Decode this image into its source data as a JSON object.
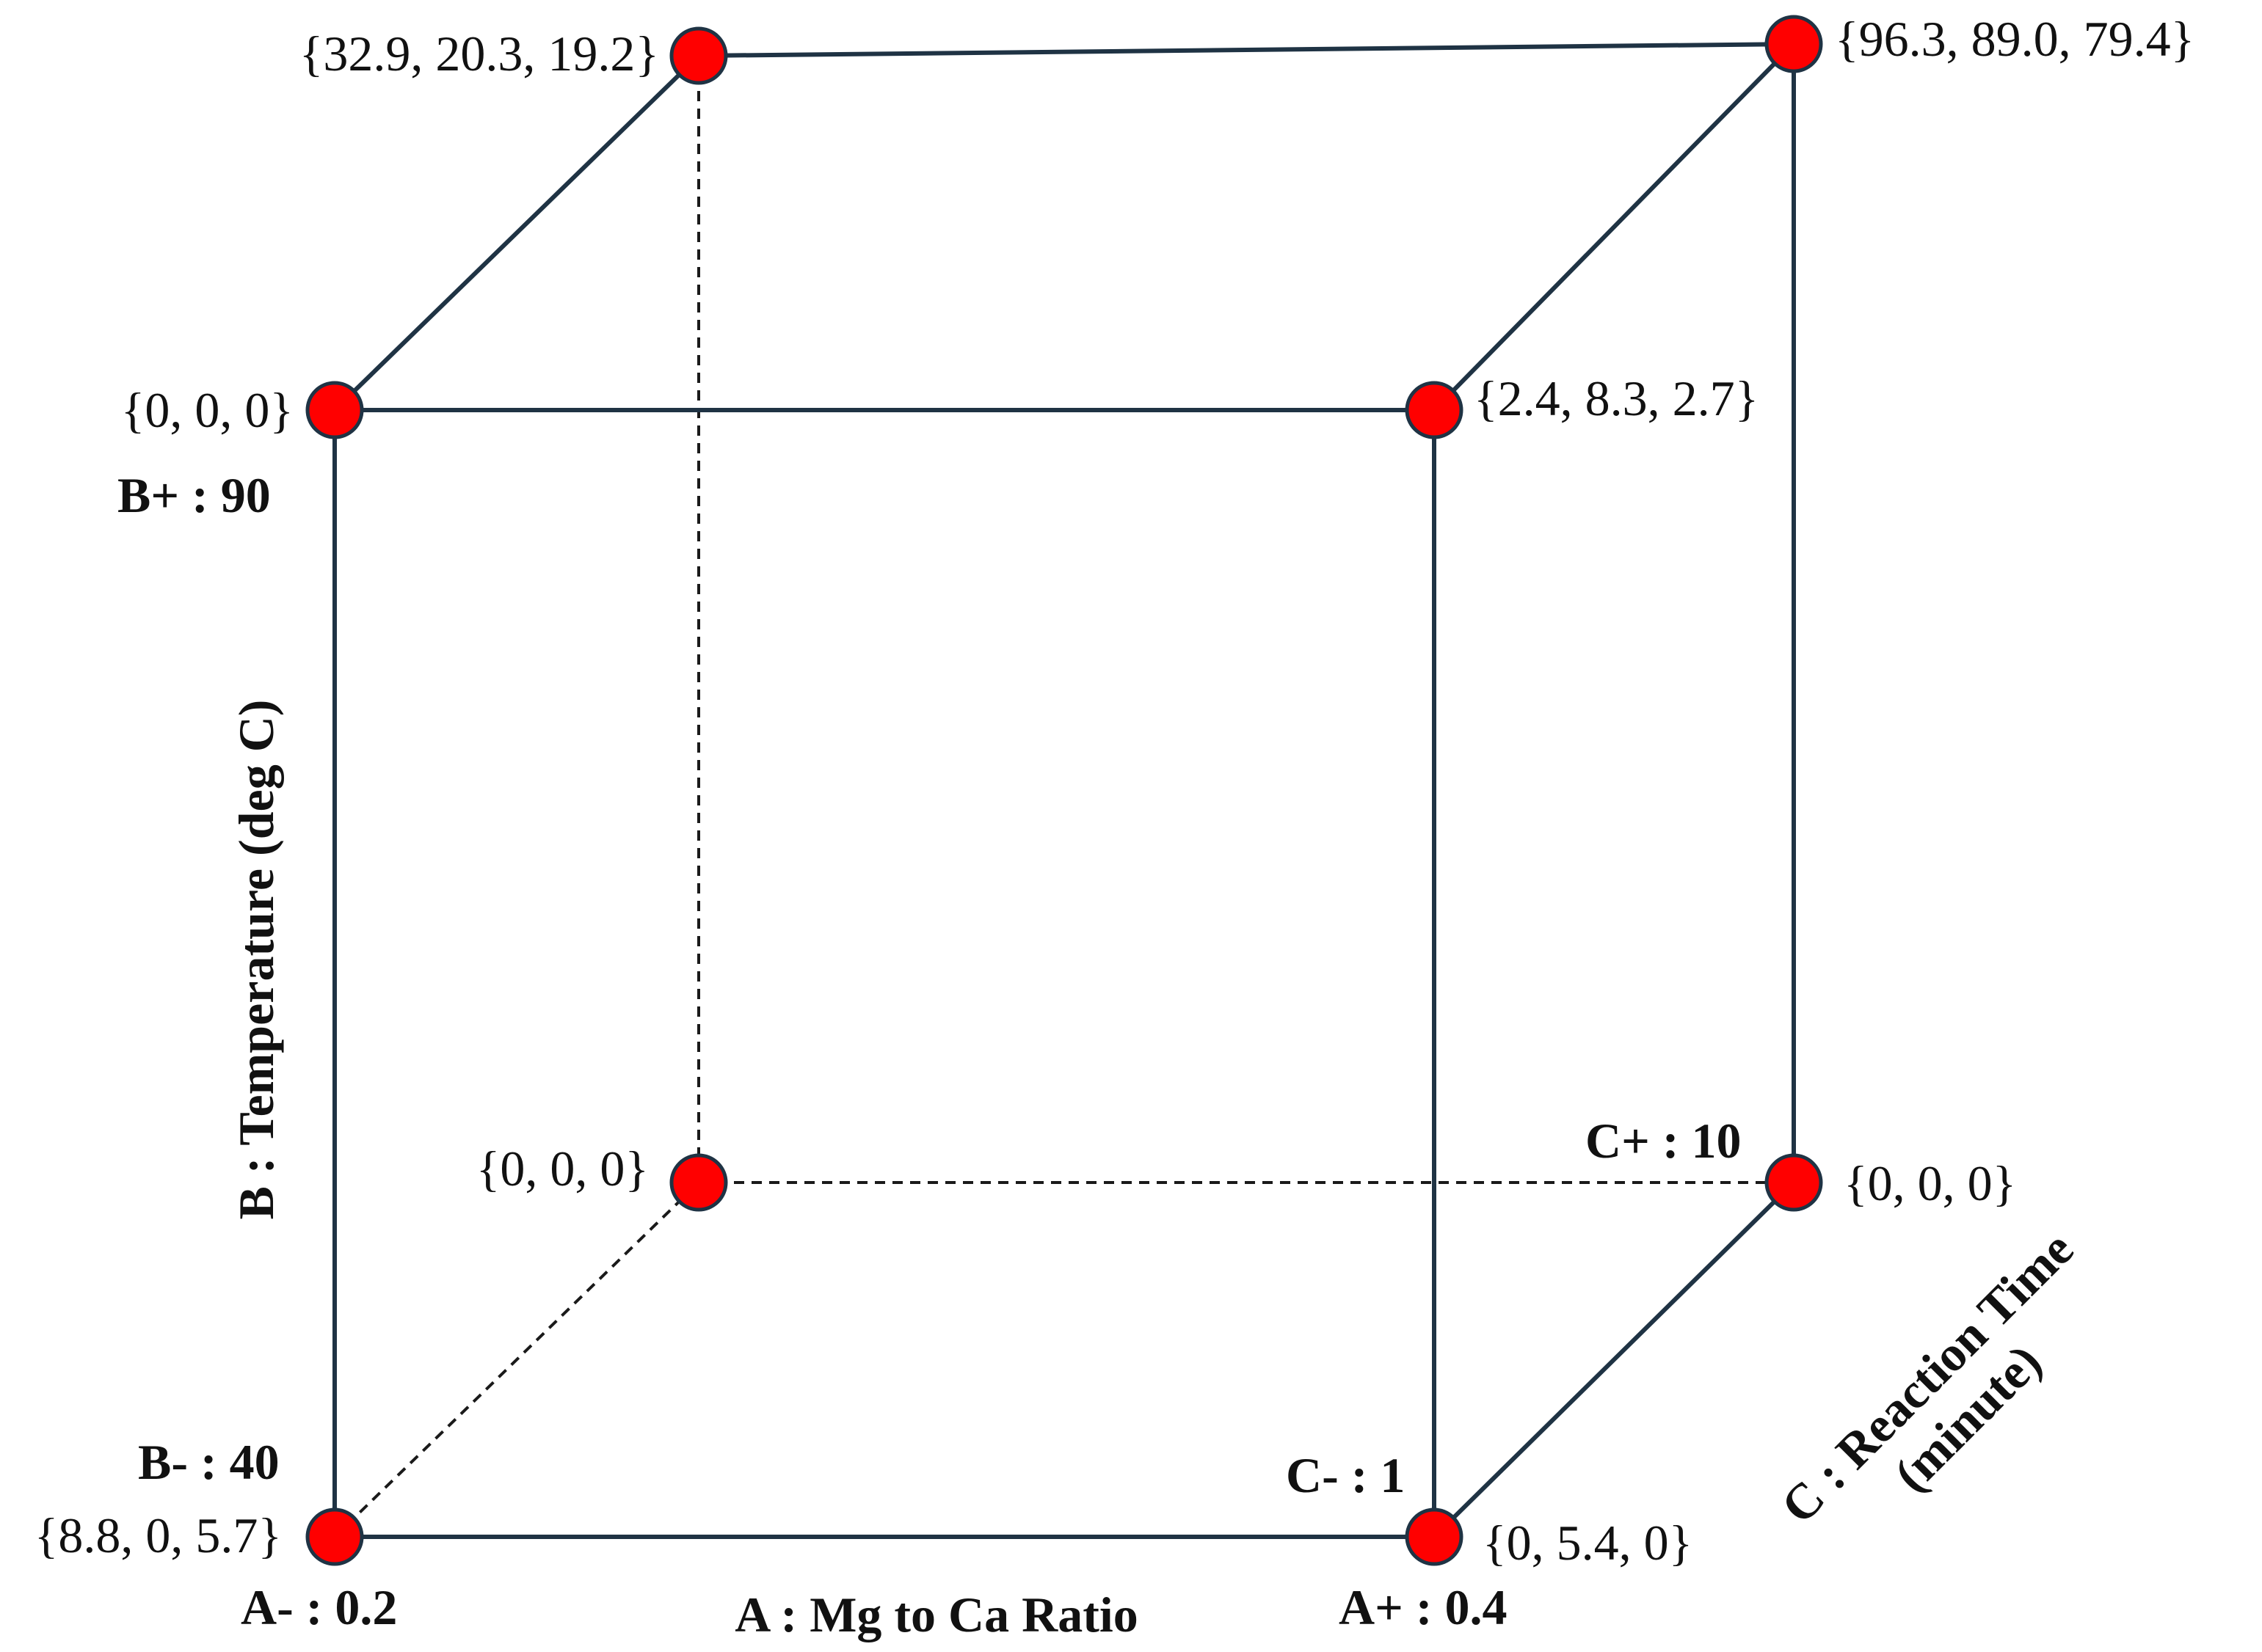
{
  "factors": {
    "a": {
      "name": "A : Mg to Ca Ratio",
      "low_label": "A- : 0.2",
      "high_label": "A+ : 0.4"
    },
    "b": {
      "name": "B : Temperature (deg C)",
      "low_label": "B- : 40",
      "high_label": "B+ : 90"
    },
    "c": {
      "name_line1": "C : Reaction Time",
      "name_line2": "(minute)",
      "low_label": "C- : 1",
      "high_label": "C+ : 10"
    }
  },
  "vertices": {
    "a_low_b_low_c_low": "{8.8, 0, 5.7}",
    "a_high_b_low_c_low": "{0, 5.4, 0}",
    "a_low_b_high_c_low": "{0, 0, 0}",
    "a_high_b_high_c_low": "{2.4, 8.3, 2.7}",
    "a_low_b_low_c_high": "{0, 0, 0}",
    "a_high_b_low_c_high": "{0, 0, 0}",
    "a_low_b_high_c_high": "{32.9, 20.3, 19.2}",
    "a_high_b_high_c_high": "{96.3, 89.0, 79.4}"
  },
  "colors": {
    "vertex_fill": "#ff0000",
    "edge": "#1f3344"
  }
}
